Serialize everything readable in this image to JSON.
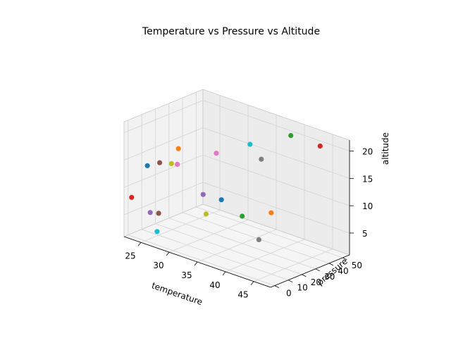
{
  "chart_data": {
    "type": "scatter",
    "title": "Temperature vs Pressure vs Altitude",
    "xlabel": "temperature",
    "ylabel": "pressure",
    "zlabel": "altitude",
    "xlim": [
      22,
      48
    ],
    "ylim": [
      -3,
      55
    ],
    "zlim": [
      1,
      22
    ],
    "x_ticks": [
      "25",
      "30",
      "35",
      "40",
      "45"
    ],
    "y_ticks": [
      "0",
      "10",
      "20",
      "30",
      "40",
      "50"
    ],
    "z_ticks": [
      "5",
      "10",
      "15",
      "20"
    ],
    "grid": true,
    "points": [
      {
        "x": 23.0,
        "y": 10.0,
        "z": 13.0,
        "color": "#1f77b4"
      },
      {
        "x": 37.0,
        "y": 43.0,
        "z": 6.0,
        "color": "#ff7f0e"
      },
      {
        "x": 40.0,
        "y": 45.0,
        "z": 21.0,
        "color": "#2ca02c"
      },
      {
        "x": 22.5,
        "y": 0.5,
        "z": 8.0,
        "color": "#d62728"
      },
      {
        "x": 24.0,
        "y": 8.0,
        "z": 5.0,
        "color": "#9467bd"
      },
      {
        "x": 23.5,
        "y": 17.0,
        "z": 13.0,
        "color": "#8c564b"
      },
      {
        "x": 28.0,
        "y": 40.0,
        "z": 14.0,
        "color": "#e377c2"
      },
      {
        "x": 35.0,
        "y": 44.0,
        "z": 15.0,
        "color": "#7f7f7f"
      },
      {
        "x": 31.0,
        "y": 20.0,
        "z": 6.0,
        "color": "#bcbd22"
      },
      {
        "x": 24.0,
        "y": 13.0,
        "z": 1.0,
        "color": "#17becf"
      },
      {
        "x": 33.0,
        "y": 23.0,
        "z": 9.0,
        "color": "#1f77b4"
      },
      {
        "x": 22.0,
        "y": 37.0,
        "z": 13.0,
        "color": "#ff7f0e"
      },
      {
        "x": 35.0,
        "y": 30.0,
        "z": 6.0,
        "color": "#2ca02c"
      },
      {
        "x": 44.0,
        "y": 50.0,
        "z": 20.0,
        "color": "#d62728"
      },
      {
        "x": 30.0,
        "y": 22.0,
        "z": 9.0,
        "color": "#9467bd"
      },
      {
        "x": 25.0,
        "y": 10.0,
        "z": 5.0,
        "color": "#8c564b"
      },
      {
        "x": 23.0,
        "y": 32.0,
        "z": 11.0,
        "color": "#e377c2"
      },
      {
        "x": 37.0,
        "y": 34.0,
        "z": 2.0,
        "color": "#7f7f7f"
      },
      {
        "x": 21.0,
        "y": 36.0,
        "z": 10.0,
        "color": "#bcbd22"
      },
      {
        "x": 33.0,
        "y": 44.0,
        "z": 17.0,
        "color": "#17becf"
      }
    ]
  }
}
